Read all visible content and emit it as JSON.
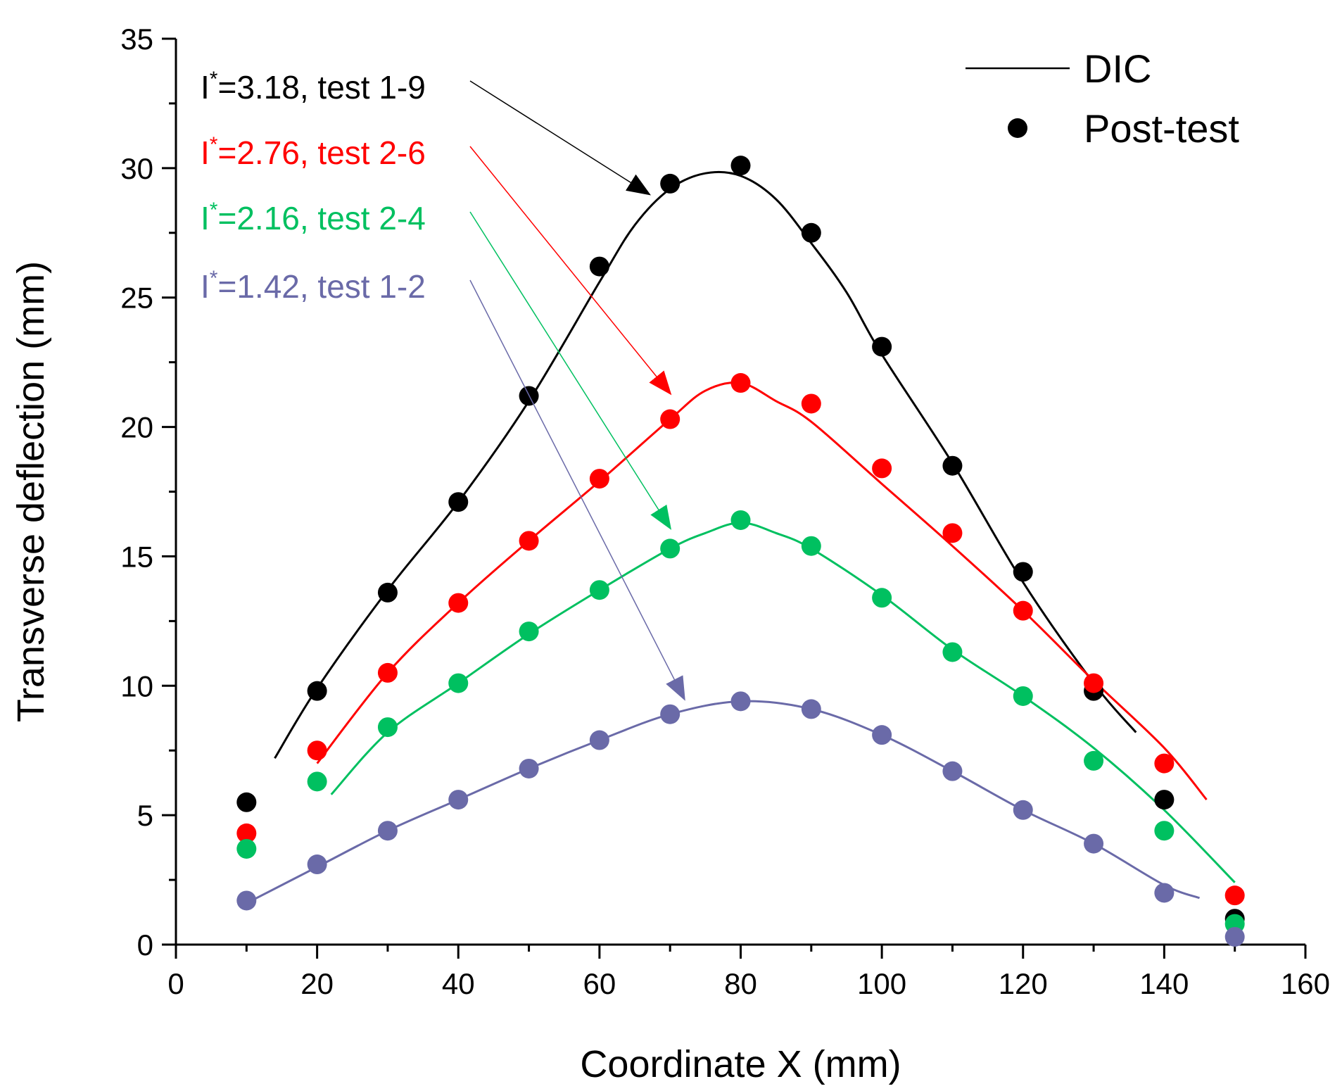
{
  "chart_data": {
    "type": "scatter",
    "title": "",
    "xlabel": "Coordinate X (mm)",
    "ylabel": "Transverse deflection (mm)",
    "xlim": [
      0,
      160
    ],
    "ylim": [
      0,
      35
    ],
    "xticks": [
      0,
      20,
      40,
      60,
      80,
      100,
      120,
      140,
      160
    ],
    "yticks": [
      0,
      5,
      10,
      15,
      20,
      25,
      30,
      35
    ],
    "grid": false,
    "legend": {
      "position": "top-right",
      "entries": [
        {
          "label": "DIC",
          "marker": "line"
        },
        {
          "label": "Post-test",
          "marker": "dot"
        }
      ]
    },
    "series": [
      {
        "name": "I*=3.18, test 1-9",
        "label_base": "I",
        "label_sup": "*",
        "label_rest": "=3.18, test 1-9",
        "color": "#000000",
        "post_test": {
          "x": [
            10,
            20,
            30,
            40,
            50,
            60,
            70,
            80,
            90,
            100,
            110,
            120,
            130,
            140,
            150
          ],
          "y": [
            5.5,
            9.8,
            13.6,
            17.1,
            21.2,
            26.2,
            29.4,
            30.1,
            27.5,
            23.1,
            18.5,
            14.4,
            9.8,
            5.6,
            1.0
          ]
        },
        "dic": {
          "x": [
            14,
            20,
            30,
            40,
            50,
            60,
            65,
            70,
            75,
            80,
            85,
            90,
            95,
            100,
            110,
            120,
            130,
            136
          ],
          "y": [
            7.2,
            9.9,
            13.7,
            17.1,
            21.0,
            25.6,
            27.8,
            29.2,
            29.8,
            29.7,
            28.8,
            27.1,
            25.2,
            22.8,
            18.6,
            14.0,
            10.1,
            8.2
          ]
        },
        "arrow_target": [
          67,
          29.0
        ]
      },
      {
        "name": "I*=2.76, test 2-6",
        "label_base": "I",
        "label_sup": "*",
        "label_rest": "=2.76, test 2-6",
        "color": "#ff0000",
        "post_test": {
          "x": [
            10,
            20,
            30,
            40,
            50,
            60,
            70,
            80,
            90,
            100,
            110,
            120,
            130,
            140,
            150
          ],
          "y": [
            4.3,
            7.5,
            10.5,
            13.2,
            15.6,
            18.0,
            20.3,
            21.7,
            20.9,
            18.4,
            15.9,
            12.9,
            10.1,
            7.0,
            1.9
          ]
        },
        "dic": {
          "x": [
            20,
            30,
            40,
            50,
            60,
            70,
            75,
            80,
            85,
            90,
            100,
            110,
            120,
            130,
            140,
            146
          ],
          "y": [
            7.0,
            10.5,
            13.2,
            15.6,
            17.9,
            20.3,
            21.4,
            21.7,
            21.0,
            20.2,
            17.8,
            15.4,
            12.9,
            10.2,
            7.6,
            5.6
          ]
        },
        "arrow_target": [
          70,
          21.3
        ]
      },
      {
        "name": "I*=2.16, test 2-4",
        "label_base": "I",
        "label_sup": "*",
        "label_rest": "=2.16, test 2-4",
        "color": "#00c060",
        "post_test": {
          "x": [
            10,
            20,
            30,
            40,
            50,
            60,
            70,
            80,
            90,
            100,
            110,
            120,
            130,
            140,
            150
          ],
          "y": [
            3.7,
            6.3,
            8.4,
            10.1,
            12.1,
            13.7,
            15.3,
            16.4,
            15.4,
            13.4,
            11.3,
            9.6,
            7.1,
            4.4,
            0.8
          ]
        },
        "dic": {
          "x": [
            22,
            30,
            40,
            50,
            60,
            70,
            75,
            80,
            85,
            90,
            100,
            110,
            120,
            130,
            140,
            150
          ],
          "y": [
            5.8,
            8.2,
            10.1,
            12.0,
            13.7,
            15.3,
            15.9,
            16.3,
            15.9,
            15.3,
            13.5,
            11.4,
            9.6,
            7.6,
            5.2,
            2.4
          ]
        },
        "arrow_target": [
          70,
          16.1
        ]
      },
      {
        "name": "I*=1.42, test 1-2",
        "label_base": "I",
        "label_sup": "*",
        "label_rest": "=1.42, test 1-2",
        "color": "#6a6aa8",
        "post_test": {
          "x": [
            10,
            20,
            30,
            40,
            50,
            60,
            70,
            80,
            90,
            100,
            110,
            120,
            130,
            140,
            150
          ],
          "y": [
            1.7,
            3.1,
            4.4,
            5.6,
            6.8,
            7.9,
            8.9,
            9.4,
            9.1,
            8.1,
            6.7,
            5.2,
            3.9,
            2.0,
            0.3
          ]
        },
        "dic": {
          "x": [
            10,
            20,
            30,
            40,
            50,
            60,
            70,
            80,
            90,
            100,
            110,
            120,
            130,
            140,
            145
          ],
          "y": [
            1.6,
            3.0,
            4.4,
            5.6,
            6.8,
            7.9,
            8.9,
            9.4,
            9.1,
            8.1,
            6.7,
            5.2,
            3.9,
            2.3,
            1.8
          ]
        },
        "arrow_target": [
          72,
          9.5
        ]
      }
    ]
  }
}
